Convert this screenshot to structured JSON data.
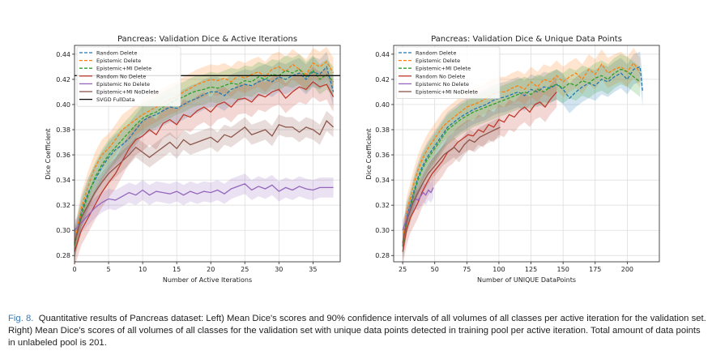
{
  "figure": {
    "caption_label": "Fig. 8.",
    "caption_text": "Quantitative results of Pancreas dataset: Left) Mean Dice's scores and 90% confidence intervals of all volumes of all classes per active iteration for the validation set. Right) Mean Dice's scores of all volumes of all classes for the validation set with unique data points detected in training pool per active iteration. Total amount of data points in unlabeled pool is 201."
  },
  "chart_data": [
    {
      "type": "line",
      "title": "Pancreas: Validation Dice & Active Iterations",
      "xlabel": "Number of Active Iterations",
      "ylabel": "Dice Coefficient",
      "xlim": [
        0,
        39
      ],
      "ylim": [
        0.275,
        0.447
      ],
      "xticks": [
        0,
        5,
        10,
        15,
        20,
        25,
        30,
        35
      ],
      "yticks": [
        0.28,
        0.3,
        0.32,
        0.34,
        0.36,
        0.38,
        0.4,
        0.42,
        0.44
      ],
      "grid": true,
      "legend": "top-left",
      "series": [
        {
          "name": "Random Delete",
          "color": "#1f77b4",
          "dash": true,
          "band": 0.012,
          "x": [
            0,
            1,
            2,
            3,
            4,
            5,
            6,
            7,
            8,
            9,
            10,
            11,
            12,
            13,
            14,
            15,
            16,
            17,
            18,
            19,
            20,
            21,
            22,
            23,
            24,
            25,
            26,
            27,
            28,
            29,
            30,
            31,
            32,
            33,
            34,
            35,
            36,
            37,
            38
          ],
          "y": [
            0.289,
            0.315,
            0.33,
            0.34,
            0.35,
            0.358,
            0.364,
            0.368,
            0.373,
            0.38,
            0.387,
            0.39,
            0.392,
            0.395,
            0.398,
            0.397,
            0.4,
            0.403,
            0.405,
            0.408,
            0.41,
            0.41,
            0.407,
            0.412,
            0.414,
            0.416,
            0.415,
            0.418,
            0.42,
            0.418,
            0.422,
            0.42,
            0.423,
            0.425,
            0.42,
            0.426,
            0.424,
            0.43,
            0.41
          ]
        },
        {
          "name": "Epistemic Delete",
          "color": "#ff7f0e",
          "dash": true,
          "band": 0.012,
          "x": [
            0,
            1,
            2,
            3,
            4,
            5,
            6,
            7,
            8,
            9,
            10,
            11,
            12,
            13,
            14,
            15,
            16,
            17,
            18,
            19,
            20,
            21,
            22,
            23,
            24,
            25,
            26,
            27,
            28,
            29,
            30,
            31,
            32,
            33,
            34,
            35,
            36,
            37,
            38
          ],
          "y": [
            0.29,
            0.318,
            0.335,
            0.35,
            0.36,
            0.365,
            0.372,
            0.38,
            0.384,
            0.388,
            0.392,
            0.395,
            0.398,
            0.401,
            0.404,
            0.406,
            0.41,
            0.413,
            0.416,
            0.418,
            0.42,
            0.419,
            0.421,
            0.418,
            0.423,
            0.421,
            0.424,
            0.426,
            0.422,
            0.428,
            0.43,
            0.426,
            0.432,
            0.428,
            0.424,
            0.433,
            0.43,
            0.434,
            0.425
          ]
        },
        {
          "name": "Epistemic+MI Delete",
          "color": "#2ca02c",
          "dash": true,
          "band": 0.012,
          "x": [
            0,
            1,
            2,
            3,
            4,
            5,
            6,
            7,
            8,
            9,
            10,
            11,
            12,
            13,
            14,
            15,
            16,
            17,
            18,
            19,
            20,
            21,
            22,
            23,
            24,
            25,
            26,
            27,
            28,
            29,
            30,
            31,
            32,
            33,
            34,
            35,
            36,
            37,
            38
          ],
          "y": [
            0.288,
            0.312,
            0.328,
            0.342,
            0.352,
            0.36,
            0.366,
            0.372,
            0.378,
            0.384,
            0.389,
            0.392,
            0.394,
            0.398,
            0.401,
            0.404,
            0.406,
            0.409,
            0.411,
            0.412,
            0.414,
            0.413,
            0.415,
            0.417,
            0.416,
            0.419,
            0.418,
            0.422,
            0.42,
            0.424,
            0.423,
            0.427,
            0.425,
            0.428,
            0.422,
            0.427,
            0.42,
            0.424,
            0.418
          ]
        },
        {
          "name": "Random No Delete",
          "color": "#c0392b",
          "dash": false,
          "band": 0.012,
          "x": [
            0,
            1,
            2,
            3,
            4,
            5,
            6,
            7,
            8,
            9,
            10,
            11,
            12,
            13,
            14,
            15,
            16,
            17,
            18,
            19,
            20,
            21,
            22,
            23,
            24,
            25,
            26,
            27,
            28,
            29,
            30,
            31,
            32,
            33,
            34,
            35,
            36,
            37,
            38
          ],
          "y": [
            0.283,
            0.3,
            0.31,
            0.32,
            0.33,
            0.338,
            0.345,
            0.355,
            0.365,
            0.372,
            0.375,
            0.38,
            0.376,
            0.385,
            0.388,
            0.384,
            0.392,
            0.39,
            0.395,
            0.398,
            0.394,
            0.4,
            0.402,
            0.398,
            0.404,
            0.405,
            0.402,
            0.408,
            0.406,
            0.41,
            0.412,
            0.405,
            0.41,
            0.414,
            0.412,
            0.418,
            0.414,
            0.416,
            0.406
          ]
        },
        {
          "name": "Epistemic No Delete",
          "color": "#9467bd",
          "dash": false,
          "band": 0.008,
          "x": [
            0,
            1,
            2,
            3,
            4,
            5,
            6,
            7,
            8,
            9,
            10,
            11,
            12,
            13,
            14,
            15,
            16,
            17,
            18,
            19,
            20,
            21,
            22,
            23,
            24,
            25,
            26,
            27,
            28,
            29,
            30,
            31,
            32,
            33,
            34,
            35,
            36,
            37,
            38
          ],
          "y": [
            0.3,
            0.306,
            0.312,
            0.318,
            0.322,
            0.325,
            0.324,
            0.327,
            0.33,
            0.328,
            0.332,
            0.328,
            0.331,
            0.33,
            0.329,
            0.331,
            0.328,
            0.331,
            0.329,
            0.331,
            0.33,
            0.332,
            0.329,
            0.333,
            0.335,
            0.337,
            0.332,
            0.335,
            0.333,
            0.336,
            0.331,
            0.334,
            0.332,
            0.335,
            0.333,
            0.332,
            0.334,
            0.334,
            0.334
          ]
        },
        {
          "name": "Epistemic+MI NoDelete",
          "color": "#8c564b",
          "dash": false,
          "band": 0.008,
          "x": [
            0,
            1,
            2,
            3,
            4,
            5,
            6,
            7,
            8,
            9,
            10,
            11,
            12,
            13,
            14,
            15,
            16,
            17,
            18,
            19,
            20,
            21,
            22,
            23,
            24,
            25,
            26,
            27,
            28,
            29,
            30,
            31,
            32,
            33,
            34,
            35,
            36,
            37,
            38
          ],
          "y": [
            0.29,
            0.31,
            0.32,
            0.33,
            0.338,
            0.345,
            0.35,
            0.355,
            0.36,
            0.366,
            0.362,
            0.358,
            0.362,
            0.366,
            0.37,
            0.365,
            0.372,
            0.368,
            0.37,
            0.372,
            0.374,
            0.37,
            0.376,
            0.374,
            0.378,
            0.382,
            0.376,
            0.378,
            0.38,
            0.375,
            0.384,
            0.382,
            0.382,
            0.378,
            0.382,
            0.38,
            0.376,
            0.387,
            0.382
          ]
        },
        {
          "name": "SVGD FullData",
          "color": "#111111",
          "dash": false,
          "band": 0,
          "x": [
            0,
            39
          ],
          "y": [
            0.423,
            0.423
          ]
        }
      ]
    },
    {
      "type": "line",
      "title": "Pancreas: Validation Dice & Unique Data Points",
      "xlabel": "Number of UNIQUE DataPoints",
      "ylabel": "Dice Coefficient",
      "xlim": [
        18,
        225
      ],
      "ylim": [
        0.275,
        0.447
      ],
      "xticks": [
        25,
        50,
        75,
        100,
        125,
        150,
        175,
        200
      ],
      "yticks": [
        0.28,
        0.3,
        0.32,
        0.34,
        0.36,
        0.38,
        0.4,
        0.42,
        0.44
      ],
      "grid": true,
      "legend": "top-left",
      "series": [
        {
          "name": "Random Delete",
          "color": "#1f77b4",
          "dash": true,
          "band": 0.012,
          "x": [
            25,
            28,
            31,
            34,
            37,
            40,
            44,
            48,
            52,
            56,
            60,
            65,
            70,
            75,
            80,
            85,
            90,
            95,
            100,
            105,
            110,
            115,
            120,
            125,
            130,
            135,
            140,
            145,
            150,
            155,
            160,
            165,
            170,
            175,
            180,
            185,
            190,
            195,
            200,
            205,
            210,
            212
          ],
          "y": [
            0.288,
            0.31,
            0.32,
            0.332,
            0.342,
            0.35,
            0.358,
            0.364,
            0.37,
            0.376,
            0.382,
            0.386,
            0.39,
            0.393,
            0.396,
            0.398,
            0.4,
            0.403,
            0.405,
            0.406,
            0.408,
            0.41,
            0.407,
            0.412,
            0.41,
            0.414,
            0.413,
            0.416,
            0.412,
            0.405,
            0.41,
            0.414,
            0.417,
            0.415,
            0.42,
            0.418,
            0.422,
            0.425,
            0.42,
            0.428,
            0.43,
            0.41
          ]
        },
        {
          "name": "Epistemic Delete",
          "color": "#ff7f0e",
          "dash": true,
          "band": 0.012,
          "x": [
            25,
            28,
            31,
            34,
            37,
            40,
            44,
            48,
            52,
            56,
            60,
            65,
            70,
            75,
            80,
            85,
            90,
            95,
            100,
            105,
            110,
            115,
            120,
            125,
            130,
            135,
            140,
            145,
            150,
            155,
            160,
            165,
            170,
            175,
            180,
            185,
            190,
            195,
            200,
            205,
            210
          ],
          "y": [
            0.29,
            0.314,
            0.326,
            0.338,
            0.348,
            0.356,
            0.364,
            0.37,
            0.376,
            0.382,
            0.386,
            0.39,
            0.394,
            0.398,
            0.4,
            0.402,
            0.405,
            0.408,
            0.41,
            0.41,
            0.413,
            0.415,
            0.412,
            0.418,
            0.414,
            0.42,
            0.418,
            0.423,
            0.418,
            0.422,
            0.425,
            0.42,
            0.428,
            0.424,
            0.432,
            0.425,
            0.428,
            0.43,
            0.426,
            0.433,
            0.425
          ]
        },
        {
          "name": "Epistemic+MI Delete",
          "color": "#2ca02c",
          "dash": true,
          "band": 0.012,
          "x": [
            25,
            28,
            31,
            34,
            37,
            40,
            44,
            48,
            52,
            56,
            60,
            65,
            70,
            75,
            80,
            85,
            90,
            95,
            100,
            105,
            110,
            115,
            120,
            125,
            130,
            135,
            140,
            145,
            150,
            155,
            160,
            165,
            170,
            175,
            180,
            185,
            190,
            195,
            200,
            205,
            210
          ],
          "y": [
            0.287,
            0.308,
            0.318,
            0.33,
            0.34,
            0.348,
            0.356,
            0.362,
            0.368,
            0.374,
            0.38,
            0.384,
            0.388,
            0.391,
            0.394,
            0.396,
            0.398,
            0.4,
            0.402,
            0.404,
            0.406,
            0.408,
            0.41,
            0.408,
            0.412,
            0.41,
            0.414,
            0.416,
            0.413,
            0.417,
            0.415,
            0.419,
            0.417,
            0.421,
            0.423,
            0.42,
            0.425,
            0.428,
            0.426,
            0.422,
            0.418
          ]
        },
        {
          "name": "Random No Delete",
          "color": "#c0392b",
          "dash": false,
          "band": 0.012,
          "x": [
            25,
            28,
            31,
            34,
            37,
            40,
            44,
            48,
            52,
            56,
            60,
            64,
            68,
            72,
            76,
            80,
            84,
            88,
            92,
            96,
            100,
            104,
            108,
            112,
            116,
            120,
            124,
            128,
            132,
            136,
            140,
            145
          ],
          "y": [
            0.283,
            0.3,
            0.31,
            0.316,
            0.322,
            0.33,
            0.338,
            0.345,
            0.35,
            0.355,
            0.362,
            0.365,
            0.37,
            0.373,
            0.376,
            0.375,
            0.38,
            0.378,
            0.384,
            0.382,
            0.388,
            0.386,
            0.392,
            0.39,
            0.395,
            0.398,
            0.394,
            0.4,
            0.402,
            0.398,
            0.404,
            0.41
          ]
        },
        {
          "name": "Epistemic No Delete",
          "color": "#9467bd",
          "dash": false,
          "band": 0.008,
          "x": [
            25,
            27,
            29,
            31,
            33,
            35,
            37,
            39,
            41,
            43,
            45,
            47,
            49
          ],
          "y": [
            0.3,
            0.306,
            0.312,
            0.318,
            0.322,
            0.325,
            0.324,
            0.327,
            0.33,
            0.328,
            0.332,
            0.33,
            0.334
          ]
        },
        {
          "name": "Epistemic+MI NoDelete",
          "color": "#8c564b",
          "dash": false,
          "band": 0.008,
          "x": [
            25,
            29,
            33,
            37,
            41,
            45,
            49,
            53,
            57,
            61,
            65,
            69,
            73,
            77,
            81,
            85,
            89,
            93,
            97,
            101
          ],
          "y": [
            0.29,
            0.31,
            0.322,
            0.33,
            0.338,
            0.345,
            0.35,
            0.355,
            0.36,
            0.363,
            0.366,
            0.362,
            0.368,
            0.372,
            0.37,
            0.374,
            0.376,
            0.378,
            0.38,
            0.382
          ]
        }
      ]
    }
  ]
}
